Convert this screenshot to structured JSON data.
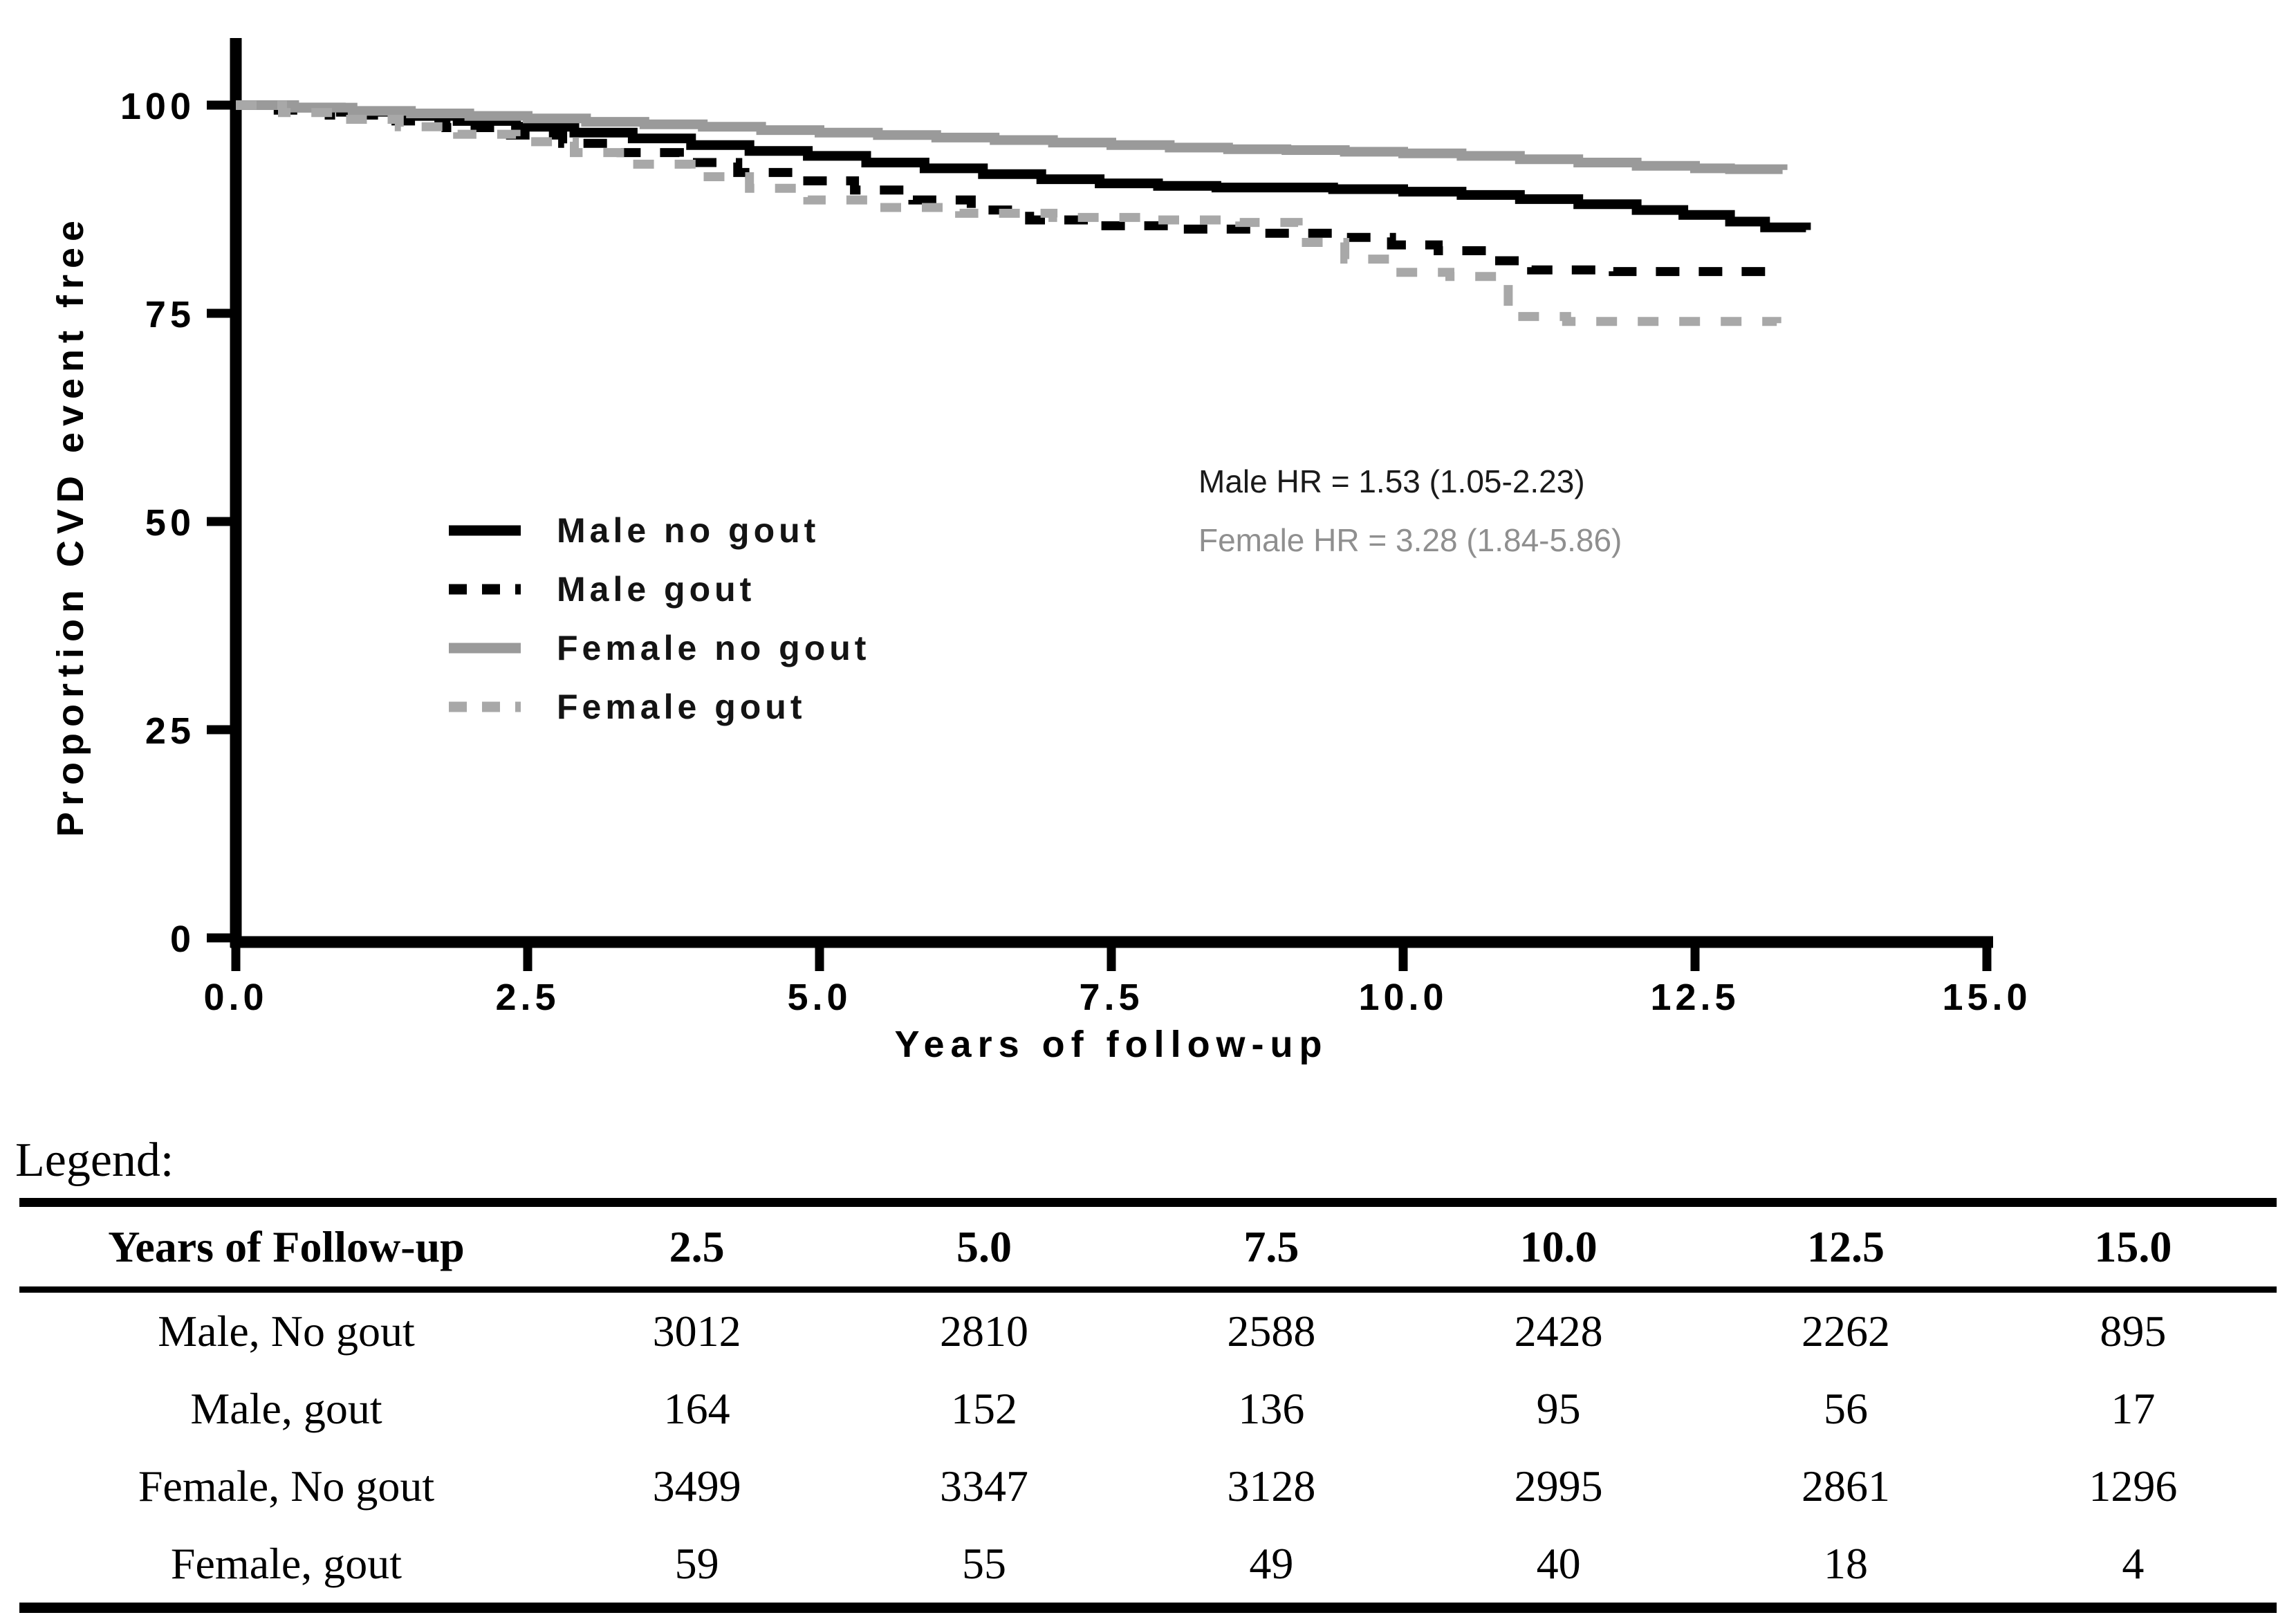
{
  "chart_data": {
    "type": "line",
    "title": "",
    "xlabel": "Years of follow-up",
    "ylabel": "Proportion CVD event free",
    "xlim": [
      0,
      15
    ],
    "ylim": [
      0,
      100
    ],
    "grid": false,
    "legend_position": "inside-left",
    "x_ticks": [
      "0.0",
      "2.5",
      "5.0",
      "7.5",
      "10.0",
      "12.5",
      "15.0"
    ],
    "y_ticks": [
      "0",
      "25",
      "50",
      "75",
      "100"
    ],
    "series": [
      {
        "name": "Male no gout",
        "style": "solid",
        "color": "#000000",
        "points": [
          [
            0,
            100
          ],
          [
            0.4,
            99.7
          ],
          [
            0.9,
            99.2
          ],
          [
            1.4,
            98.7
          ],
          [
            1.9,
            98.1
          ],
          [
            2.4,
            97.4
          ],
          [
            2.9,
            96.7
          ],
          [
            3.4,
            96.0
          ],
          [
            3.9,
            95.2
          ],
          [
            4.4,
            94.5
          ],
          [
            4.9,
            93.9
          ],
          [
            5.4,
            93.1
          ],
          [
            5.9,
            92.4
          ],
          [
            6.4,
            91.7
          ],
          [
            6.9,
            91.1
          ],
          [
            7.4,
            90.6
          ],
          [
            7.9,
            90.3
          ],
          [
            8.4,
            90.1
          ],
          [
            9.4,
            89.9
          ],
          [
            10.0,
            89.6
          ],
          [
            10.5,
            89.2
          ],
          [
            11.0,
            88.7
          ],
          [
            11.5,
            88.1
          ],
          [
            12.0,
            87.4
          ],
          [
            12.4,
            86.8
          ],
          [
            12.8,
            86.0
          ],
          [
            13.1,
            85.3
          ],
          [
            13.45,
            85.0
          ]
        ]
      },
      {
        "name": "Male gout",
        "style": "dashed",
        "color": "#000000",
        "points": [
          [
            0,
            100
          ],
          [
            0.3,
            99.4
          ],
          [
            0.8,
            98.8
          ],
          [
            1.3,
            98.1
          ],
          [
            1.8,
            97.3
          ],
          [
            2.3,
            96.4
          ],
          [
            2.8,
            95.4
          ],
          [
            3.3,
            94.3
          ],
          [
            3.8,
            93.1
          ],
          [
            4.3,
            91.9
          ],
          [
            4.8,
            90.9
          ],
          [
            5.3,
            89.8
          ],
          [
            5.8,
            88.6
          ],
          [
            6.3,
            87.4
          ],
          [
            6.8,
            86.2
          ],
          [
            7.3,
            85.5
          ],
          [
            8.0,
            85.1
          ],
          [
            8.7,
            84.6
          ],
          [
            9.4,
            84.1
          ],
          [
            9.9,
            83.2
          ],
          [
            10.3,
            82.5
          ],
          [
            10.75,
            81.3
          ],
          [
            11.1,
            80.2
          ],
          [
            11.8,
            80.0
          ],
          [
            13.1,
            80.0
          ]
        ]
      },
      {
        "name": "Female no gout",
        "style": "solid",
        "color": "#9a9a9a",
        "points": [
          [
            0,
            100
          ],
          [
            0.5,
            99.7
          ],
          [
            1.0,
            99.3
          ],
          [
            1.5,
            99.0
          ],
          [
            2.0,
            98.7
          ],
          [
            2.5,
            98.4
          ],
          [
            3.0,
            98.0
          ],
          [
            3.5,
            97.7
          ],
          [
            4.0,
            97.4
          ],
          [
            4.5,
            97.0
          ],
          [
            5.0,
            96.7
          ],
          [
            5.5,
            96.4
          ],
          [
            6.0,
            96.1
          ],
          [
            6.5,
            95.8
          ],
          [
            7.0,
            95.5
          ],
          [
            7.5,
            95.2
          ],
          [
            8.0,
            94.9
          ],
          [
            8.5,
            94.7
          ],
          [
            9.0,
            94.6
          ],
          [
            9.5,
            94.4
          ],
          [
            10.0,
            94.2
          ],
          [
            10.5,
            93.9
          ],
          [
            11.0,
            93.5
          ],
          [
            11.5,
            93.1
          ],
          [
            12.0,
            92.7
          ],
          [
            12.5,
            92.4
          ],
          [
            12.8,
            92.3
          ],
          [
            13.25,
            92.2
          ]
        ]
      },
      {
        "name": "Female gout",
        "style": "dashed",
        "color": "#a8a8a8",
        "points": [
          [
            0,
            100
          ],
          [
            0.4,
            99.1
          ],
          [
            0.9,
            98.3
          ],
          [
            1.4,
            97.4
          ],
          [
            1.9,
            96.5
          ],
          [
            2.4,
            95.6
          ],
          [
            2.9,
            94.3
          ],
          [
            3.4,
            92.9
          ],
          [
            3.9,
            91.4
          ],
          [
            4.4,
            90.0
          ],
          [
            4.9,
            88.6
          ],
          [
            5.5,
            87.7
          ],
          [
            6.2,
            87.0
          ],
          [
            7.0,
            86.5
          ],
          [
            7.8,
            86.2
          ],
          [
            8.6,
            85.9
          ],
          [
            9.1,
            83.5
          ],
          [
            9.5,
            81.5
          ],
          [
            9.9,
            79.9
          ],
          [
            10.4,
            79.4
          ],
          [
            10.9,
            74.6
          ],
          [
            11.4,
            74.0
          ],
          [
            13.2,
            73.8
          ]
        ]
      }
    ],
    "annotations": [
      {
        "text": "Male HR = 1.53 (1.05-2.23)",
        "color": "#1a1a1a"
      },
      {
        "text": "Female HR = 3.28 (1.84-5.86)",
        "color": "#8f8f8f"
      }
    ]
  },
  "table": {
    "heading": "Legend:",
    "columns": [
      "Years of Follow-up",
      "2.5",
      "5.0",
      "7.5",
      "10.0",
      "12.5",
      "15.0"
    ],
    "rows": [
      {
        "label": "Male, No gout",
        "values": [
          "3012",
          "2810",
          "2588",
          "2428",
          "2262",
          "895"
        ]
      },
      {
        "label": "Male, gout",
        "values": [
          "164",
          "152",
          "136",
          "95",
          "56",
          "17"
        ]
      },
      {
        "label": "Female, No gout",
        "values": [
          "3499",
          "3347",
          "3128",
          "2995",
          "2861",
          "1296"
        ]
      },
      {
        "label": "Female, gout",
        "values": [
          "59",
          "55",
          "49",
          "40",
          "18",
          "4"
        ]
      }
    ]
  }
}
